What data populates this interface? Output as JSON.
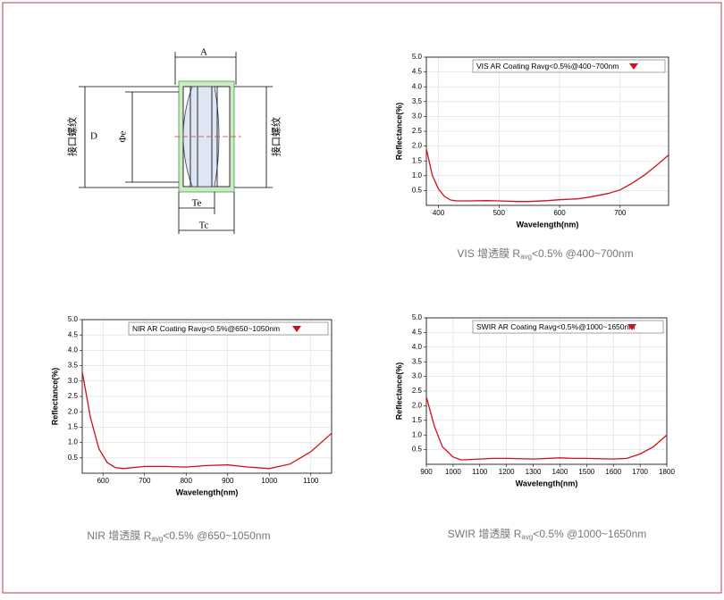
{
  "diagram": {
    "dimension_a": "A",
    "dimension_d": "D",
    "dimension_phi_e": "Φe",
    "dimension_te": "Te",
    "dimension_tc": "Tc",
    "thread_left": "接口螺纹",
    "thread_right": "接口螺纹"
  },
  "chart_data": [
    {
      "type": "line",
      "title": "VIS AR Coating Ravg<0.5%@400~700nm",
      "x_label": "Wavelength(nm)",
      "y_label": "Reflectance(%)",
      "caption": "VIS 增透膜 R",
      "caption_sub": "avg",
      "caption_end": "<0.5% @400~700nm",
      "x": [
        380,
        390,
        400,
        410,
        420,
        430,
        450,
        480,
        500,
        530,
        550,
        580,
        600,
        630,
        650,
        680,
        700,
        720,
        740,
        760,
        780
      ],
      "values": [
        1.9,
        1.0,
        0.55,
        0.3,
        0.18,
        0.15,
        0.15,
        0.16,
        0.15,
        0.13,
        0.13,
        0.16,
        0.19,
        0.22,
        0.28,
        0.4,
        0.52,
        0.75,
        1.02,
        1.35,
        1.7
      ],
      "color": "#d0101b",
      "xlim": [
        380,
        780
      ],
      "ylim": [
        0,
        5
      ],
      "xticks": [
        400,
        500,
        600,
        700
      ],
      "yticks": [
        0.5,
        {
          "value": 1,
          "label": "1.0"
        },
        1.5,
        {
          "value": 2,
          "label": "2.0"
        },
        2.5,
        {
          "value": 3,
          "label": "3.0"
        },
        3.5,
        {
          "value": 4,
          "label": "4.0"
        },
        4.5,
        {
          "value": 5,
          "label": "5.0"
        }
      ],
      "grid": true
    },
    {
      "type": "line",
      "title": "NIR AR Coating Ravg<0.5%@650~1050nm",
      "x_label": "Wavelength(nm)",
      "y_label": "Reflectance(%)",
      "caption": "NIR 增透膜 R",
      "caption_sub": "avg",
      "caption_end": "<0.5% @650~1050nm",
      "x": [
        550,
        570,
        590,
        610,
        630,
        650,
        700,
        750,
        800,
        850,
        900,
        950,
        1000,
        1050,
        1100,
        1150
      ],
      "values": [
        3.3,
        1.8,
        0.8,
        0.35,
        0.18,
        0.15,
        0.22,
        0.22,
        0.2,
        0.25,
        0.27,
        0.2,
        0.15,
        0.3,
        0.7,
        1.3
      ],
      "color": "#d0101b",
      "xlim": [
        550,
        1150
      ],
      "ylim": [
        0,
        5
      ],
      "xticks": [
        600,
        700,
        800,
        900,
        1000,
        1100
      ],
      "yticks": [
        0.5,
        {
          "value": 1,
          "label": "1.0"
        },
        1.5,
        {
          "value": 2,
          "label": "2.0"
        },
        2.5,
        {
          "value": 3,
          "label": "3.0"
        },
        3.5,
        {
          "value": 4,
          "label": "4.0"
        },
        4.5,
        {
          "value": 5,
          "label": "5.0"
        }
      ],
      "grid": true
    },
    {
      "type": "line",
      "title": "SWIR AR Coating Ravg<0.5%@1000~1650nm",
      "x_label": "Wavelength(nm)",
      "y_label": "Reflectance(%)",
      "caption": "SWIR 增透膜 R",
      "caption_sub": "avg",
      "caption_end": "<0.5% @1000~1650nm",
      "x": [
        900,
        930,
        960,
        1000,
        1030,
        1100,
        1150,
        1200,
        1300,
        1400,
        1450,
        1500,
        1600,
        1650,
        1700,
        1750,
        1800
      ],
      "values": [
        2.3,
        1.3,
        0.6,
        0.25,
        0.15,
        0.18,
        0.2,
        0.2,
        0.18,
        0.22,
        0.2,
        0.2,
        0.18,
        0.2,
        0.35,
        0.6,
        1.0
      ],
      "color": "#d0101b",
      "xlim": [
        900,
        1800
      ],
      "ylim": [
        0,
        5
      ],
      "xticks": [
        900,
        1000,
        1100,
        1200,
        1300,
        1400,
        1500,
        1600,
        1700,
        1800
      ],
      "yticks": [
        0.5,
        {
          "value": 1,
          "label": "1.0"
        },
        1.5,
        {
          "value": 2,
          "label": "2.0"
        },
        2.5,
        {
          "value": 3,
          "label": "3.0"
        },
        3.5,
        {
          "value": 4,
          "label": "4.0"
        },
        4.5,
        {
          "value": 5,
          "label": "5.0"
        }
      ],
      "grid": true
    }
  ]
}
